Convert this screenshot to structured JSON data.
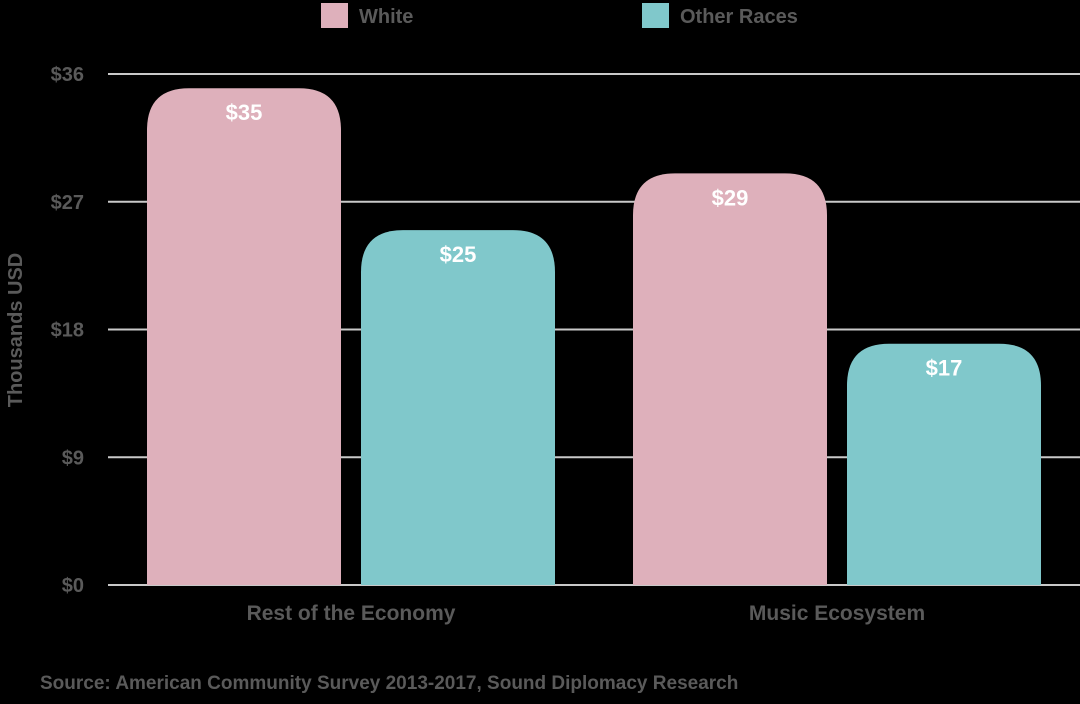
{
  "chart_data": {
    "type": "bar",
    "categories": [
      "Rest of the Economy",
      "Music Ecosystem"
    ],
    "series": [
      {
        "name": "White",
        "values": [
          35,
          29
        ],
        "labels": [
          "$35",
          "$29"
        ],
        "color": "#deb0bb"
      },
      {
        "name": "Other Races",
        "values": [
          25,
          17
        ],
        "labels": [
          "$25",
          "$17"
        ],
        "color": "#80c8cb"
      }
    ],
    "ylabel": "Thousands USD",
    "yticks": [
      0,
      9,
      18,
      27,
      36
    ],
    "ytick_labels": [
      "$0",
      "$9",
      "$18",
      "$27",
      "$36"
    ],
    "ylim": [
      0,
      36
    ],
    "grid": true,
    "legend_position": "top",
    "source": "Source: American Community Survey 2013-2017, Sound Diplomacy Research"
  },
  "colors": {
    "background": "#000000",
    "text": "#5a5a5a",
    "grid": "#c9c9c9",
    "value_text": "#ffffff"
  }
}
